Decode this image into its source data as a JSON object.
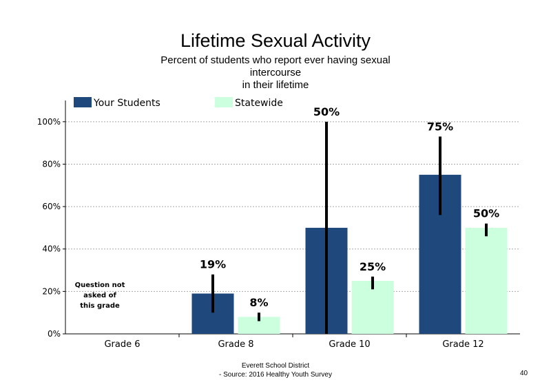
{
  "chart_data": {
    "type": "bar",
    "title": "Lifetime Sexual Activity",
    "subtitle": [
      "Percent of students  who report ever having sexual",
      "intercourse",
      "in their lifetime"
    ],
    "categories": [
      "Grade 6",
      "Grade 8",
      "Grade 10",
      "Grade 12"
    ],
    "series": [
      {
        "name": "Your Students",
        "color": "#1f497d",
        "values": [
          null,
          19,
          50,
          75
        ],
        "labels": [
          "",
          "19%",
          "50%",
          "75%"
        ],
        "error_low": [
          null,
          10,
          0,
          56
        ],
        "error_high": [
          null,
          28,
          100,
          93
        ]
      },
      {
        "name": "Statewide",
        "color": "#ccffdd",
        "values": [
          null,
          8,
          25,
          50
        ],
        "labels": [
          "",
          "8%",
          "25%",
          "50%"
        ],
        "error_low": [
          null,
          6,
          21,
          46
        ],
        "error_high": [
          null,
          10,
          27,
          52
        ]
      }
    ],
    "y_ticks": [
      "0%",
      "20%",
      "40%",
      "60%",
      "80%",
      "100%"
    ],
    "ylim": [
      0,
      110
    ],
    "grid": true,
    "legend": "top",
    "annotation": [
      "Question not",
      "asked of",
      "this grade"
    ]
  },
  "footer": {
    "line1": "Everett School District",
    "line2": "- Source: 2016 Healthy  Youth Survey",
    "page": "40"
  }
}
